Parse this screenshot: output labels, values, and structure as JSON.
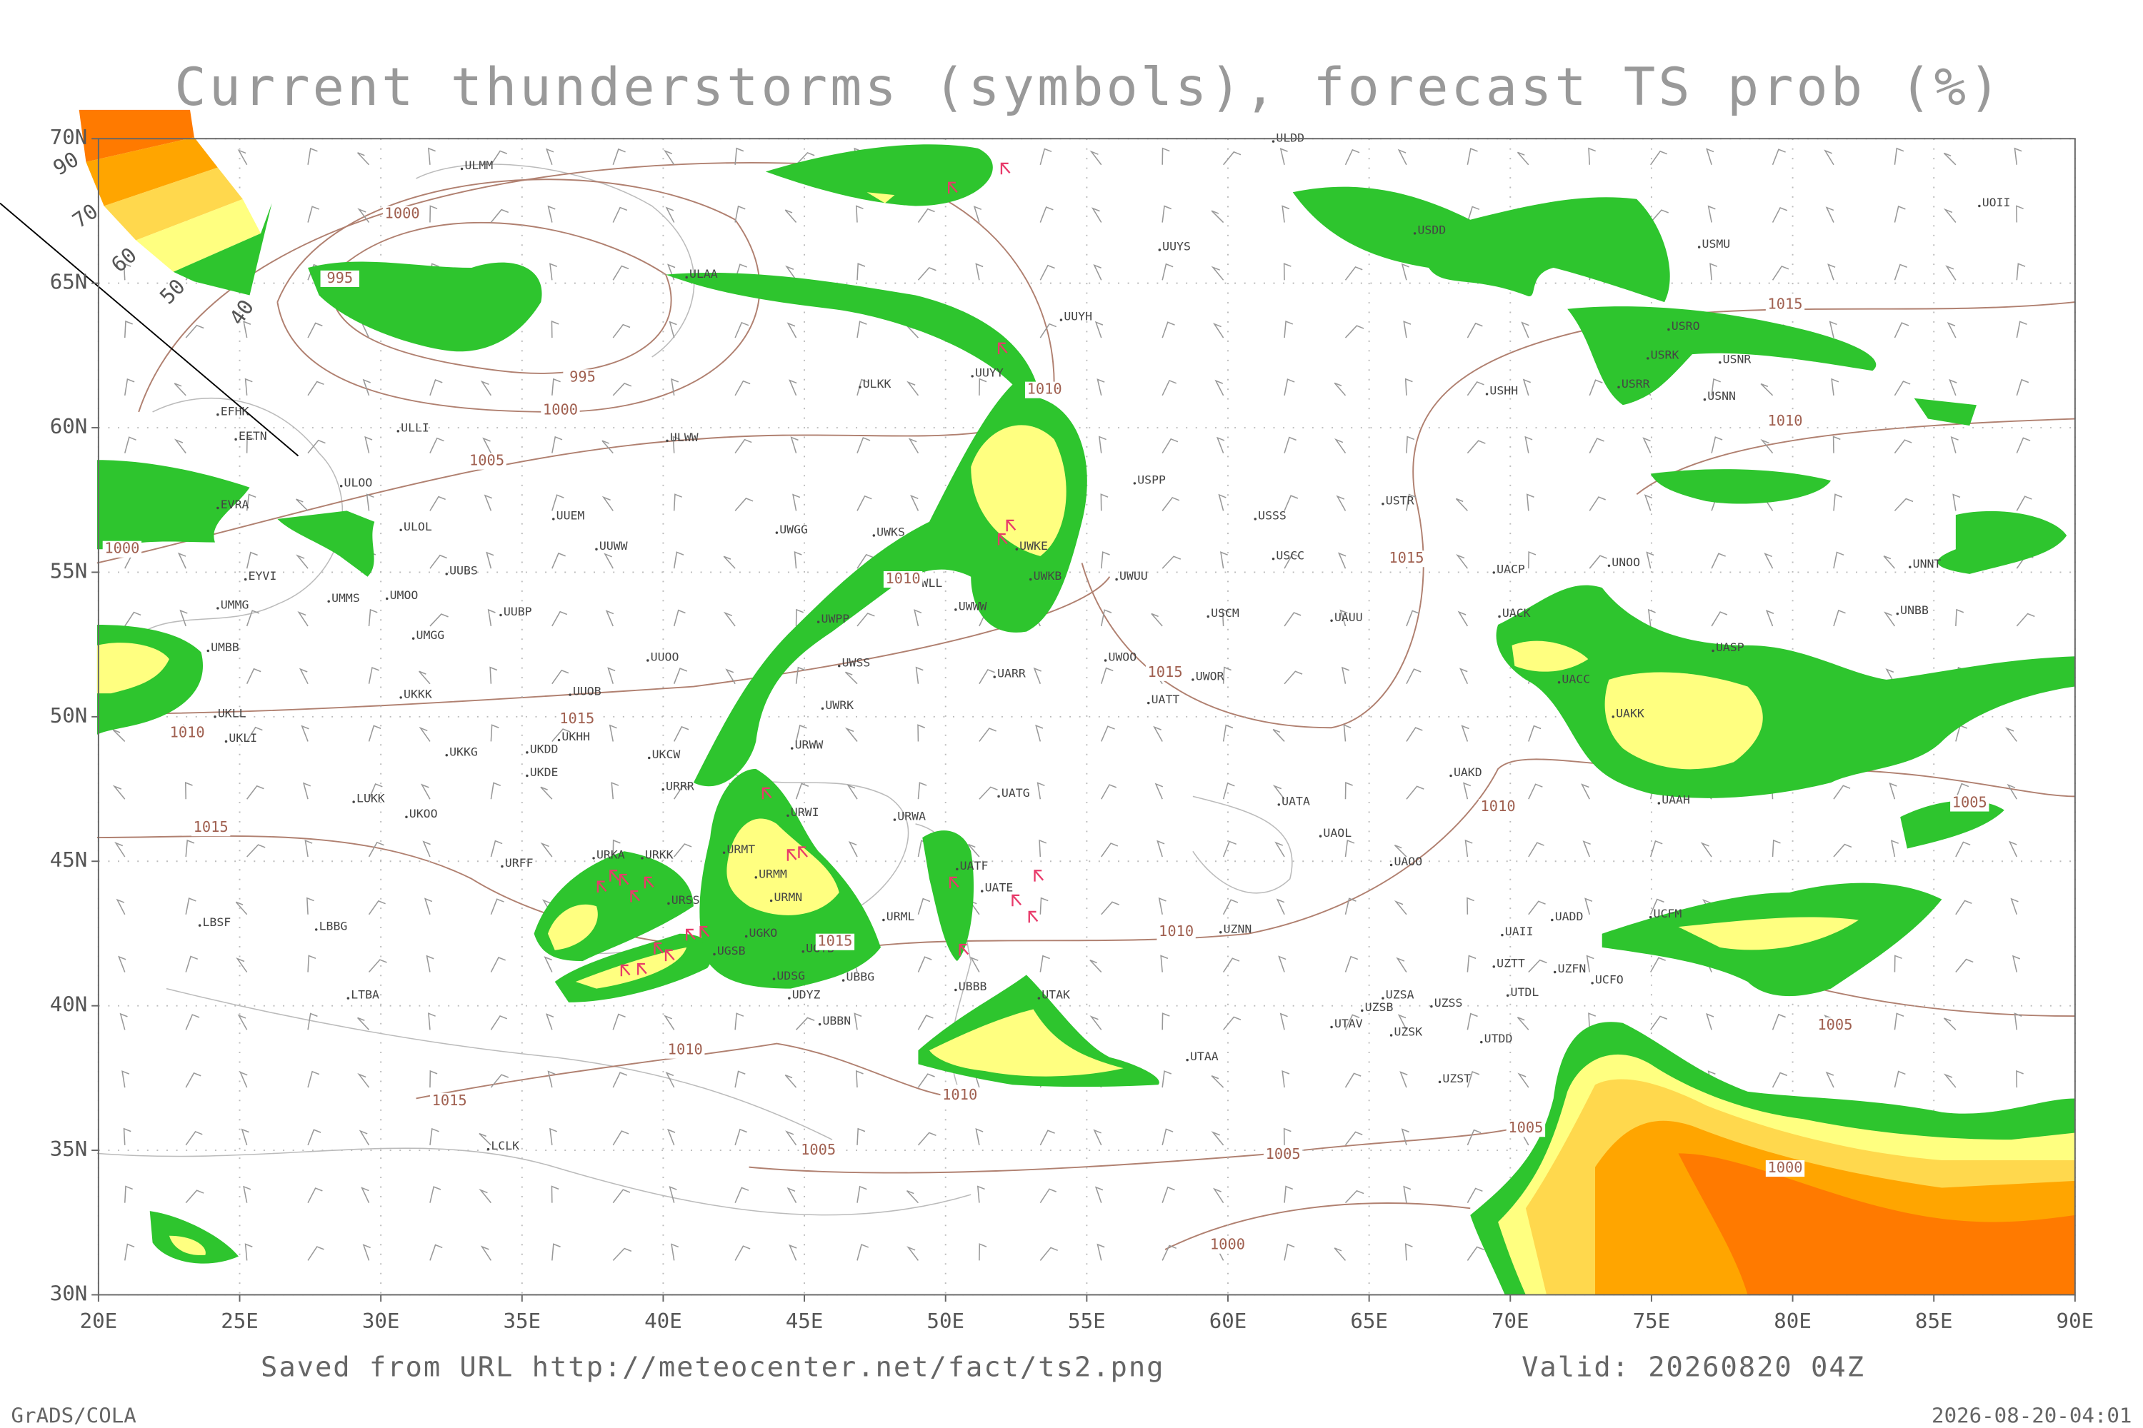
{
  "header": {
    "title": "Current thunderstorms (symbols), forecast TS prob (%)"
  },
  "axes": {
    "lon_range": [
      20,
      90
    ],
    "lat_range": [
      30,
      70
    ],
    "lon_ticks": [
      {
        "value": 20,
        "label": "20E"
      },
      {
        "value": 25,
        "label": "25E"
      },
      {
        "value": 30,
        "label": "30E"
      },
      {
        "value": 35,
        "label": "35E"
      },
      {
        "value": 40,
        "label": "40E"
      },
      {
        "value": 45,
        "label": "45E"
      },
      {
        "value": 50,
        "label": "50E"
      },
      {
        "value": 55,
        "label": "55E"
      },
      {
        "value": 60,
        "label": "60E"
      },
      {
        "value": 65,
        "label": "65E"
      },
      {
        "value": 70,
        "label": "70E"
      },
      {
        "value": 75,
        "label": "75E"
      },
      {
        "value": 80,
        "label": "80E"
      },
      {
        "value": 85,
        "label": "85E"
      },
      {
        "value": 90,
        "label": "90E"
      }
    ],
    "lat_ticks": [
      {
        "value": 70,
        "label": "70N"
      },
      {
        "value": 65,
        "label": "65N"
      },
      {
        "value": 60,
        "label": "60N"
      },
      {
        "value": 55,
        "label": "55N"
      },
      {
        "value": 50,
        "label": "50N"
      },
      {
        "value": 45,
        "label": "45N"
      },
      {
        "value": 40,
        "label": "40N"
      },
      {
        "value": 35,
        "label": "35N"
      },
      {
        "value": 30,
        "label": "30N"
      }
    ]
  },
  "legend": {
    "labels": [
      "90",
      "70",
      "60",
      "50",
      "40"
    ]
  },
  "stations": [
    "ULDD",
    "ULMM",
    "UUYS",
    "USDD",
    "UOII",
    "USMU",
    "ULAA",
    "UUYH",
    "USRO",
    "USRK",
    "USNR",
    "UUYY",
    "ULKK",
    "USHH",
    "USRR",
    "USNN",
    "EFHK",
    "EETN",
    "ULLI",
    "ULWW",
    "USPP",
    "ULOO",
    "EVRA",
    "USTR",
    "ULOL",
    "UUEM",
    "UWGG",
    "UWKS",
    "USSS",
    "UUWW",
    "UWKE",
    "USCC",
    "UNNT",
    "UUBS",
    "UWKB",
    "UWUU",
    "UACP",
    "UNOO",
    "EYVI",
    "UWLL",
    "UMMG",
    "UMMS",
    "UMOO",
    "UUBP",
    "UWWW",
    "USCM",
    "UAUU",
    "UACK",
    "UNBB",
    "UWPP",
    "UMGG",
    "UMBB",
    "UUOO",
    "UWSS",
    "UWOO",
    "UASP",
    "UARR",
    "UWOR",
    "UACC",
    "UUOB",
    "UKKK",
    "UWRK",
    "UATT",
    "UKLL",
    "UAKK",
    "UKHH",
    "UKLI",
    "UKKG",
    "UKDD",
    "URWW",
    "UKCW",
    "UKDE",
    "UAKD",
    "URRR",
    "UATG",
    "LUKK",
    "UATA",
    "UAAH",
    "UKOO",
    "URWI",
    "URWA",
    "UAOL",
    "URFF",
    "URKA",
    "URKK",
    "URMT",
    "UATF",
    "UAOO",
    "URMM",
    "UATE",
    "URSS",
    "URMN",
    "UADD",
    "UCFM",
    "LBSF",
    "URML",
    "UZNN",
    "UAII",
    "UGKO",
    "UGSB",
    "UBBB",
    "UGTB",
    "LBBG",
    "UZTT",
    "UZFN",
    "UDSG",
    "UBBG",
    "UTAK",
    "UCFO",
    "LTBA",
    "UDYZ",
    "UTDL",
    "UZSA",
    "UZSB",
    "UZSS",
    "UTAV",
    "UBBN",
    "UZSK",
    "UTDD",
    "UTAA",
    "UZST",
    "LCLK"
  ],
  "isobars": [
    "995",
    "995",
    "1000",
    "1000",
    "1005",
    "1010",
    "1010",
    "1015",
    "1015",
    "1015",
    "1010",
    "1015",
    "1010",
    "1015",
    "1010",
    "1005",
    "1005",
    "1010",
    "1015",
    "1010",
    "1005",
    "1005",
    "1005",
    "1000",
    "1000",
    "1015",
    "1010",
    "1000"
  ],
  "footer": {
    "source": "Saved from URL http://meteocenter.net/fact/ts2.png",
    "valid": "Valid: 20260820 04Z",
    "software": "GrADS/COLA",
    "timestamp": "2026-08-20-04:01"
  }
}
